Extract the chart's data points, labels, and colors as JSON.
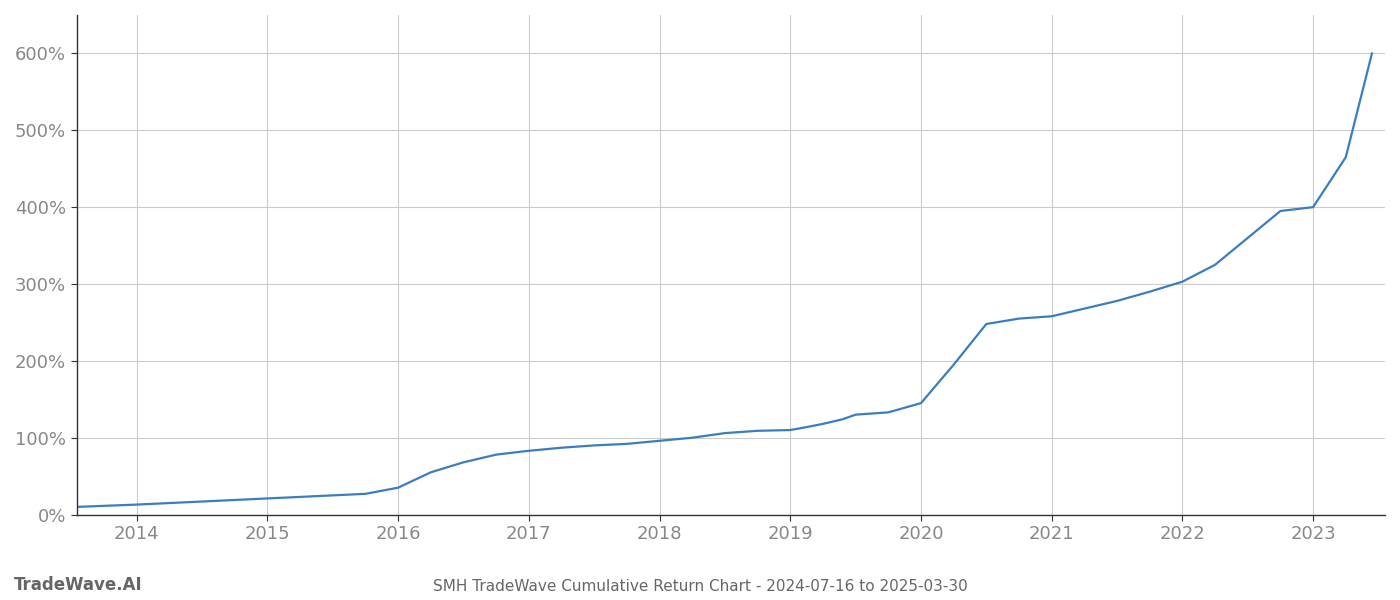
{
  "title": "SMH TradeWave Cumulative Return Chart - 2024-07-16 to 2025-03-30",
  "watermark": "TradeWave.AI",
  "line_color": "#3a7ebf",
  "background_color": "#ffffff",
  "grid_color": "#cccccc",
  "tick_label_color": "#888888",
  "footer_color": "#666666",
  "years": [
    2014,
    2015,
    2016,
    2017,
    2018,
    2019,
    2020,
    2021,
    2022,
    2023
  ],
  "x_values": [
    2013.54,
    2014.0,
    2014.25,
    2014.5,
    2014.75,
    2015.0,
    2015.25,
    2015.5,
    2015.75,
    2016.0,
    2016.25,
    2016.5,
    2016.75,
    2017.0,
    2017.25,
    2017.5,
    2017.75,
    2018.0,
    2018.25,
    2018.5,
    2018.75,
    2019.0,
    2019.1,
    2019.25,
    2019.4,
    2019.5,
    2019.75,
    2020.0,
    2020.25,
    2020.5,
    2020.75,
    2021.0,
    2021.25,
    2021.5,
    2021.75,
    2022.0,
    2022.25,
    2022.5,
    2022.75,
    2023.0,
    2023.25,
    2023.45
  ],
  "y_values": [
    10,
    13,
    15,
    17,
    19,
    21,
    23,
    25,
    27,
    35,
    55,
    68,
    78,
    83,
    87,
    90,
    92,
    96,
    100,
    106,
    109,
    110,
    113,
    118,
    124,
    130,
    133,
    145,
    195,
    248,
    255,
    258,
    268,
    278,
    290,
    303,
    325,
    360,
    395,
    400,
    465,
    600
  ],
  "ylim": [
    0,
    650
  ],
  "yticks": [
    0,
    100,
    200,
    300,
    400,
    500,
    600
  ],
  "xlim": [
    2013.54,
    2023.55
  ],
  "title_fontsize": 11,
  "watermark_fontsize": 12,
  "tick_fontsize": 13,
  "line_width": 1.6
}
